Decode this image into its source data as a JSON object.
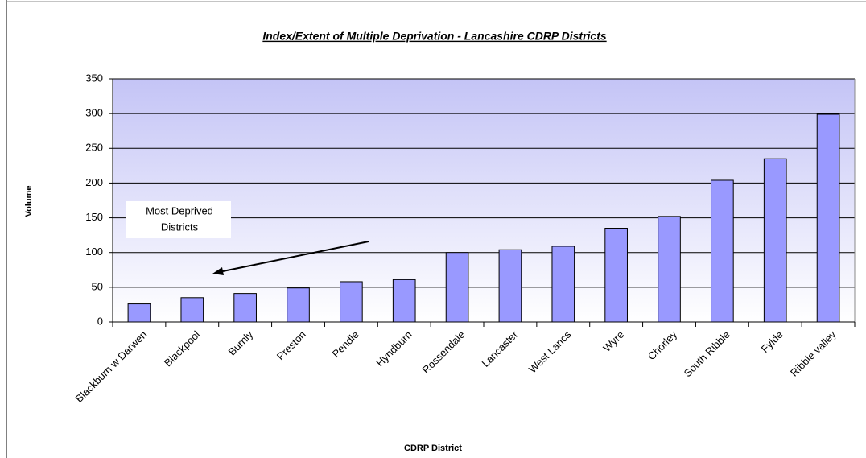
{
  "chart_data": {
    "type": "bar",
    "title": "Index/Extent of Multiple Deprivation - Lancashire CDRP Districts",
    "x_label": "CDRP District",
    "y_label": "Volume",
    "categories": [
      "Blackburn w Darwen",
      "Blackpool",
      "Burnly",
      "Preston",
      "Pendle",
      "Hyndburn",
      "Rossendale",
      "Lancaster",
      "West Lancs",
      "Wyre",
      "Chorley",
      "South Ribble",
      "Fylde",
      "Ribble valley"
    ],
    "values": [
      26,
      35,
      41,
      49,
      58,
      61,
      100,
      104,
      109,
      135,
      152,
      204,
      235,
      299
    ],
    "color": "#9999ff",
    "ylim": [
      0,
      350
    ],
    "yticks": [
      0,
      50,
      100,
      150,
      200,
      250,
      300,
      350
    ],
    "grid": true,
    "annotation": [
      "Most Deprived",
      "Districts"
    ]
  }
}
